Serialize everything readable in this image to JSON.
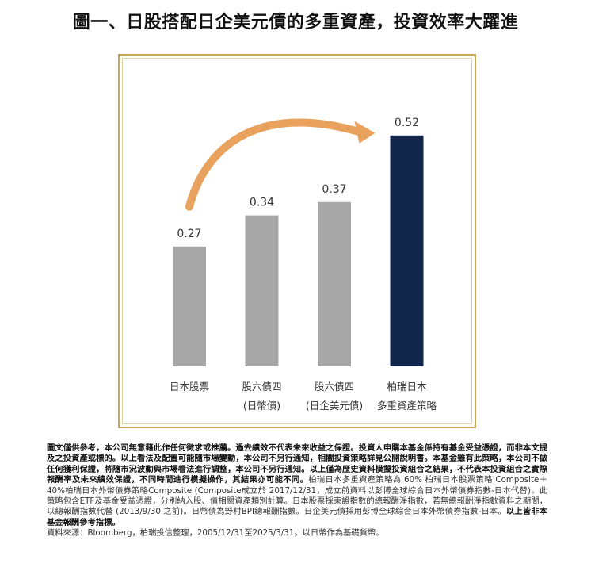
{
  "title": "圖一、日股搭配日企美元債的多重資產，投資效率大躍進",
  "chart_data": {
    "type": "bar",
    "categories": [
      [
        "日本股票"
      ],
      [
        "股六債四",
        "(日幣債)"
      ],
      [
        "股六債四",
        "(日企美元債)"
      ],
      [
        "柏瑞日本",
        "多重資產策略"
      ]
    ],
    "values": [
      0.27,
      0.34,
      0.37,
      0.52
    ],
    "value_labels": [
      "0.27",
      "0.34",
      "0.37",
      "0.52"
    ],
    "ylim": [
      0,
      0.6
    ],
    "colors": [
      "#a7a7a7",
      "#a7a7a7",
      "#a7a7a7",
      "#11264a"
    ],
    "arrow_color": "#e9a25e",
    "frame_color": "#c9a55a",
    "grid": false,
    "legend": "none",
    "title": "",
    "xlabel": "",
    "ylabel": ""
  },
  "footnote": {
    "bold_text": "圖文僅供參考，本公司無意藉此作任何徵求或推薦。過去績效不代表未來收益之保證。投資人申購本基金係持有基金受益憑證，而非本文提及之投資產或標的。以上看法及配置可能隨市場變動，本公司不另行通知，相關投資策略詳見公開說明書。本基金雖有此策略，本公司不做任何獲利保證，將隨市況波動與市場看法進行調整，本公司不另行通知。以上僅為歷史資料模擬投資組合之結果，不代表本投資組合之實際報酬率及未來績效保證，不同時間進行模擬操作，其結果亦可能不同。",
    "regular_text": "柏瑞日本多重資產策略為 60% 柏瑞日本股票策略 Composite＋40%柏瑞日本外幣債券策略Composite (Composite成立於 2017/12/31，成立前資料以彭博全球綜合日本外幣債券指數-日本代替)。此策略包含ETF及基金受益憑證，分別納入股、債相關資產類別計算。日本股票採束證指數的總報酬淨指數，若無總報酬淨指數資料之期間，以總報酬指數代替 (2013/9/30 之前)。日幣債為野村BPI總報酬指數。日企美元債採用彭博全球綜合日本外幣債券指數-日本。",
    "bold_end": "以上皆非本基金報酬參考指標。",
    "source": "資料來源：Bloomberg，柏瑞投信整理，2005/12/31至2025/3/31。以日幣作為基礎貨幣。"
  }
}
